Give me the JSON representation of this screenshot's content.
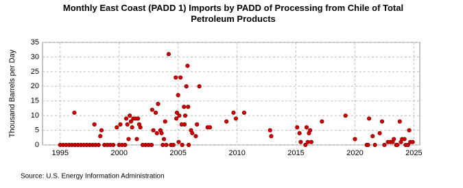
{
  "chart_data": {
    "type": "scatter",
    "title": "Monthly East Coast (PADD 1) Imports by PADD of Processing from Chile of Total Petroleum Products",
    "y_label": "Thousand Barrels per Day",
    "source": "Source: U.S. Energy Information Administration",
    "color": "#cc0000",
    "grid": true,
    "xlim": [
      1993.5,
      2025.5
    ],
    "xticks": [
      1995,
      2000,
      2005,
      2010,
      2015,
      2020,
      2025
    ],
    "ylim": [
      0,
      35
    ],
    "yticks": [
      0,
      5,
      10,
      15,
      20,
      25,
      30,
      35
    ],
    "x": [
      1995.0,
      1995.25,
      1995.5,
      1995.75,
      1996.0,
      1996.2,
      1996.25,
      1996.5,
      1996.75,
      1997.0,
      1997.25,
      1997.5,
      1997.75,
      1997.9,
      1998.0,
      1998.25,
      1998.4,
      1998.5,
      1998.75,
      1999.0,
      1999.25,
      1999.5,
      1999.8,
      2000.0,
      2000.1,
      2000.25,
      2000.5,
      2000.6,
      2000.7,
      2000.8,
      2000.9,
      2001.0,
      2001.1,
      2001.2,
      2001.4,
      2001.5,
      2001.6,
      2001.7,
      2001.8,
      2002.0,
      2002.25,
      2002.5,
      2002.75,
      2002.8,
      2002.9,
      2003.1,
      2003.2,
      2003.3,
      2003.5,
      2003.6,
      2003.7,
      2003.8,
      2003.9,
      2004.0,
      2004.2,
      2004.4,
      2004.6,
      2004.8,
      2004.85,
      2004.9,
      2005.0,
      2005.05,
      2005.1,
      2005.2,
      2005.3,
      2005.35,
      2005.5,
      2005.55,
      2005.6,
      2005.7,
      2005.8,
      2005.85,
      2005.9,
      2006.1,
      2006.2,
      2006.5,
      2006.6,
      2006.8,
      2007.5,
      2007.7,
      2009.1,
      2009.7,
      2009.9,
      2010.6,
      2012.8,
      2012.9,
      2015.1,
      2015.3,
      2015.4,
      2015.8,
      2015.9,
      2016.0,
      2016.1,
      2016.2,
      2016.3,
      2017.2,
      2019.2,
      2020.0,
      2021.0,
      2021.1,
      2021.2,
      2021.5,
      2021.7,
      2022.1,
      2022.3,
      2022.5,
      2022.8,
      2023.0,
      2023.2,
      2023.3,
      2023.5,
      2023.6,
      2023.8,
      2023.9,
      2024.0,
      2024.2,
      2024.3,
      2024.5,
      2024.6,
      2024.7,
      2024.9
    ],
    "values": [
      0,
      0,
      0,
      0,
      0,
      11,
      0,
      0,
      0,
      0,
      0,
      0,
      0,
      7,
      0,
      0,
      3,
      5,
      0,
      0,
      0,
      0,
      6,
      0,
      7,
      0,
      0,
      9,
      7,
      2,
      10,
      8,
      6,
      9,
      9,
      2,
      9,
      7,
      6,
      0,
      0,
      0,
      0,
      12,
      5,
      11,
      4,
      14,
      5,
      4,
      0,
      2,
      8,
      0,
      31,
      0,
      0,
      23,
      9,
      11,
      17,
      1,
      10,
      23,
      7,
      0,
      13,
      7,
      10,
      20,
      27,
      13,
      0,
      5,
      4,
      3,
      7,
      20,
      6,
      6,
      8,
      11,
      9,
      11,
      5,
      3,
      6,
      4,
      1,
      0,
      6,
      1,
      4,
      5,
      1,
      8,
      10,
      2,
      0,
      0,
      9,
      3,
      0,
      4,
      8,
      0,
      1,
      1,
      1,
      2,
      0,
      0,
      8,
      1,
      2,
      2,
      0,
      0,
      5,
      1,
      1
    ]
  }
}
